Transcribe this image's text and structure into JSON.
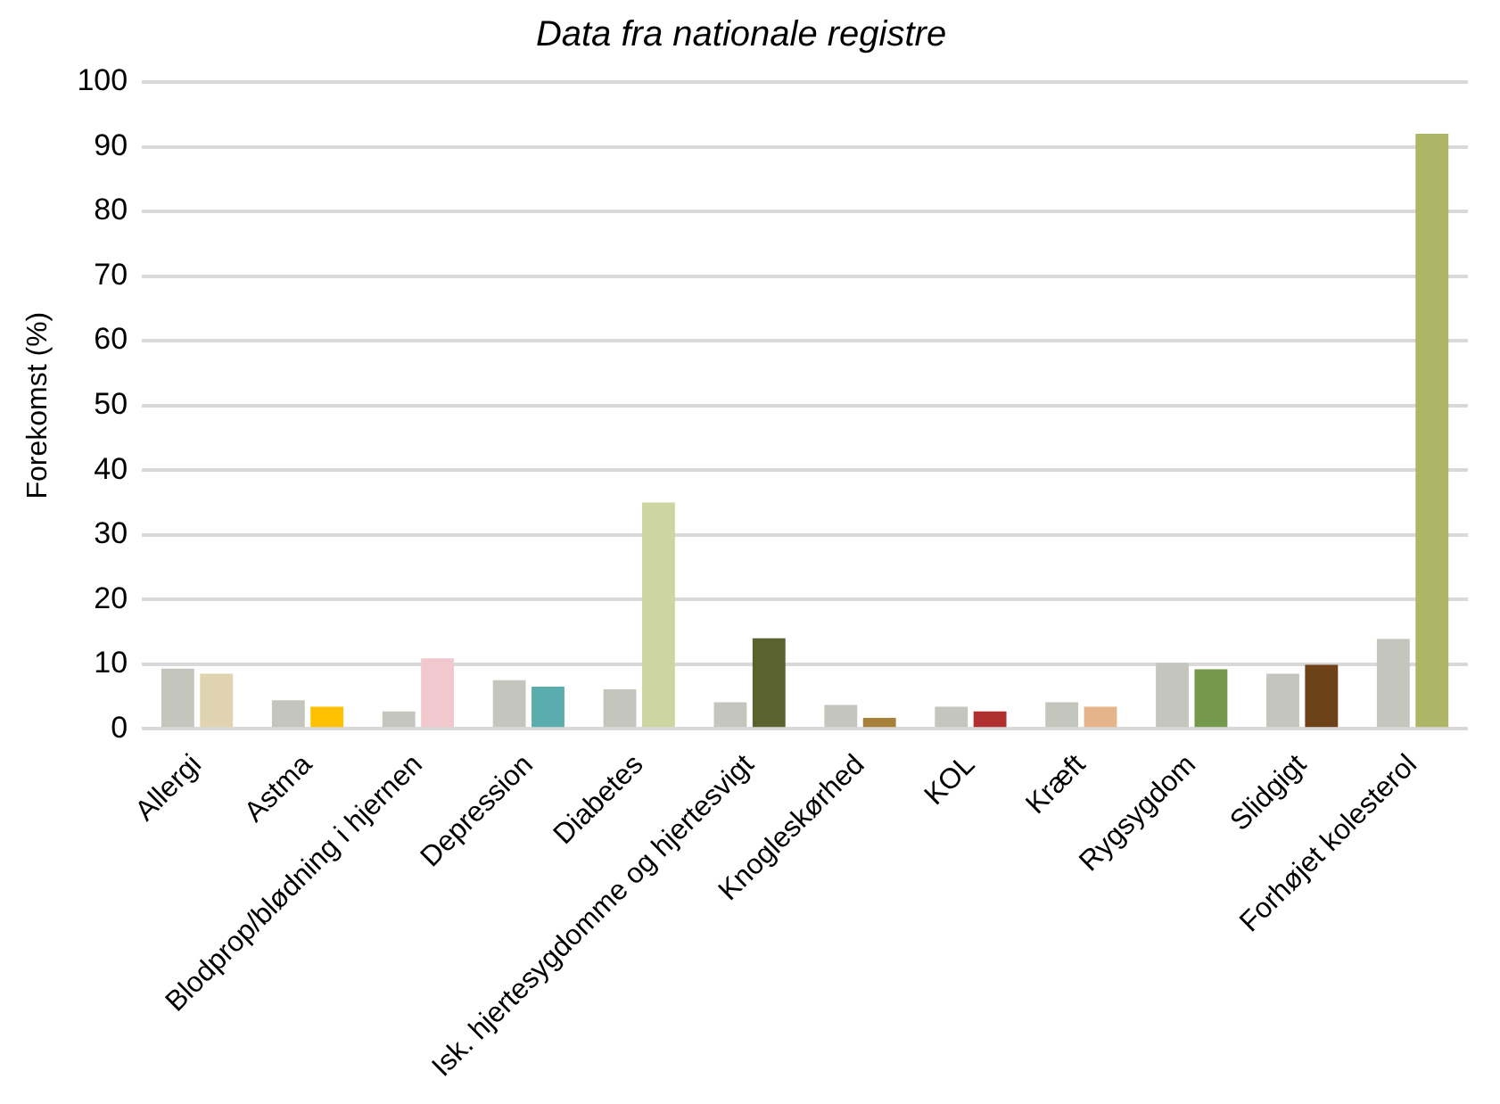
{
  "chart_data": {
    "type": "bar",
    "subtitle": "Data fra nationale registre",
    "ylabel": "Forekomst (%)",
    "categories": [
      "Allergi",
      "Astma",
      "Blodprop/blødning i hjernen",
      "Depression",
      "Diabetes",
      "Isk. hjertesygdomme og hjertesvigt",
      "Knogleskørhed",
      "KOL",
      "Kræft",
      "Rygsygdom",
      "Slidgigt",
      "Forhøjet kolesterol"
    ],
    "series": [
      {
        "color": "#c4c5bc",
        "values": [
          9.3,
          4.4,
          2.7,
          7.5,
          6.1,
          4.1,
          3.7,
          3.4,
          4.1,
          10.2,
          8.5,
          13.9
        ]
      },
      {
        "colors": [
          "#e0d3b0",
          "#ffc000",
          "#f0c8ce",
          "#5bacad",
          "#cdd5a0",
          "#5a632e",
          "#a7813a",
          "#b03030",
          "#e6b48a",
          "#74994a",
          "#6e4219",
          "#adb566"
        ],
        "values": [
          8.5,
          3.4,
          10.9,
          6.5,
          35,
          14,
          1.7,
          2.7,
          3.4,
          9.2,
          9.9,
          92
        ]
      }
    ],
    "ylim": [
      0,
      100
    ],
    "yticks": [
      0,
      10,
      20,
      30,
      40,
      50,
      60,
      70,
      80,
      90,
      100
    ],
    "grid": "y",
    "legend": false
  }
}
